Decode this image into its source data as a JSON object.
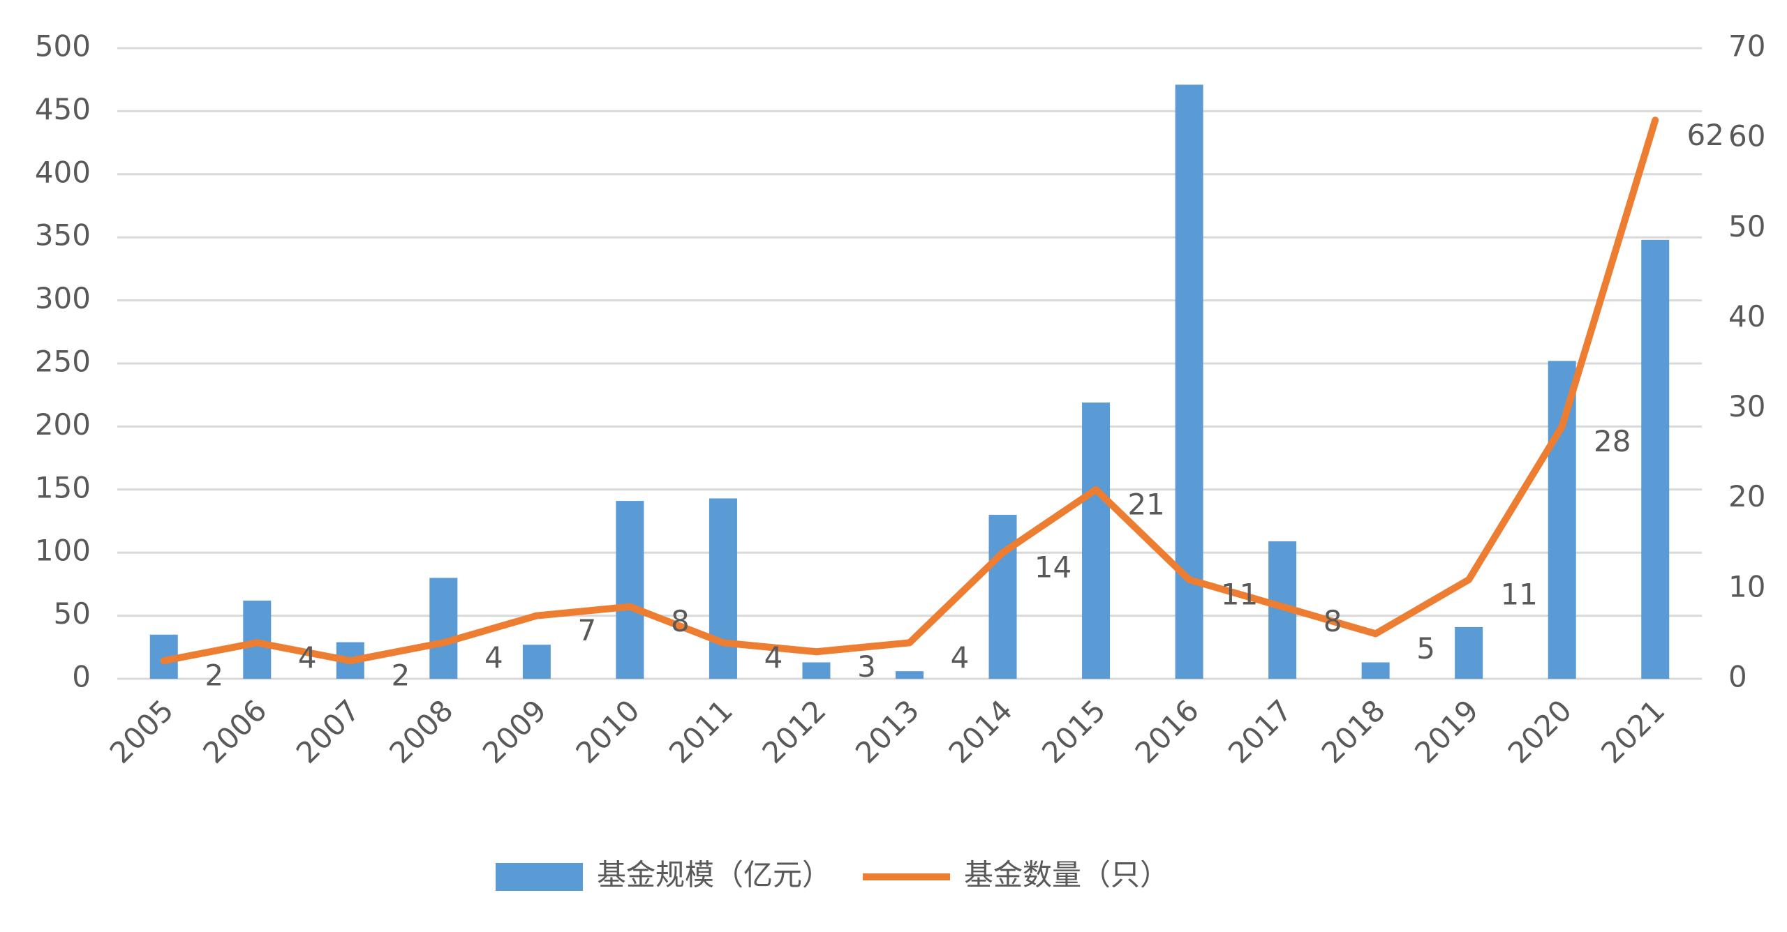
{
  "chart_data": {
    "type": "bar-line",
    "categories": [
      "2005",
      "2006",
      "2007",
      "2008",
      "2009",
      "2010",
      "2011",
      "2012",
      "2013",
      "2014",
      "2015",
      "2016",
      "2017",
      "2018",
      "2019",
      "2020",
      "2021"
    ],
    "series": [
      {
        "name": "基金规模（亿元）",
        "type": "bar",
        "color": "#5b9bd5",
        "axis": "y",
        "values": [
          35,
          62,
          29,
          80,
          27,
          141,
          143,
          13,
          6,
          130,
          219,
          471,
          109,
          13,
          41,
          252,
          348
        ]
      },
      {
        "name": "基金数量（只）",
        "type": "line",
        "color": "#ed7d31",
        "axis": "y2",
        "values": [
          2,
          4,
          2,
          4,
          7,
          8,
          4,
          3,
          4,
          14,
          21,
          11,
          8,
          5,
          11,
          28,
          62
        ],
        "data_labels": true
      }
    ],
    "ylim": [
      0,
      500
    ],
    "yticks": [
      0,
      50,
      100,
      150,
      200,
      250,
      300,
      350,
      400,
      450,
      500
    ],
    "y2lim": [
      0,
      70
    ],
    "y2ticks": [
      0,
      10,
      20,
      30,
      40,
      50,
      60,
      70
    ],
    "grid": true,
    "legend": "bottom"
  }
}
